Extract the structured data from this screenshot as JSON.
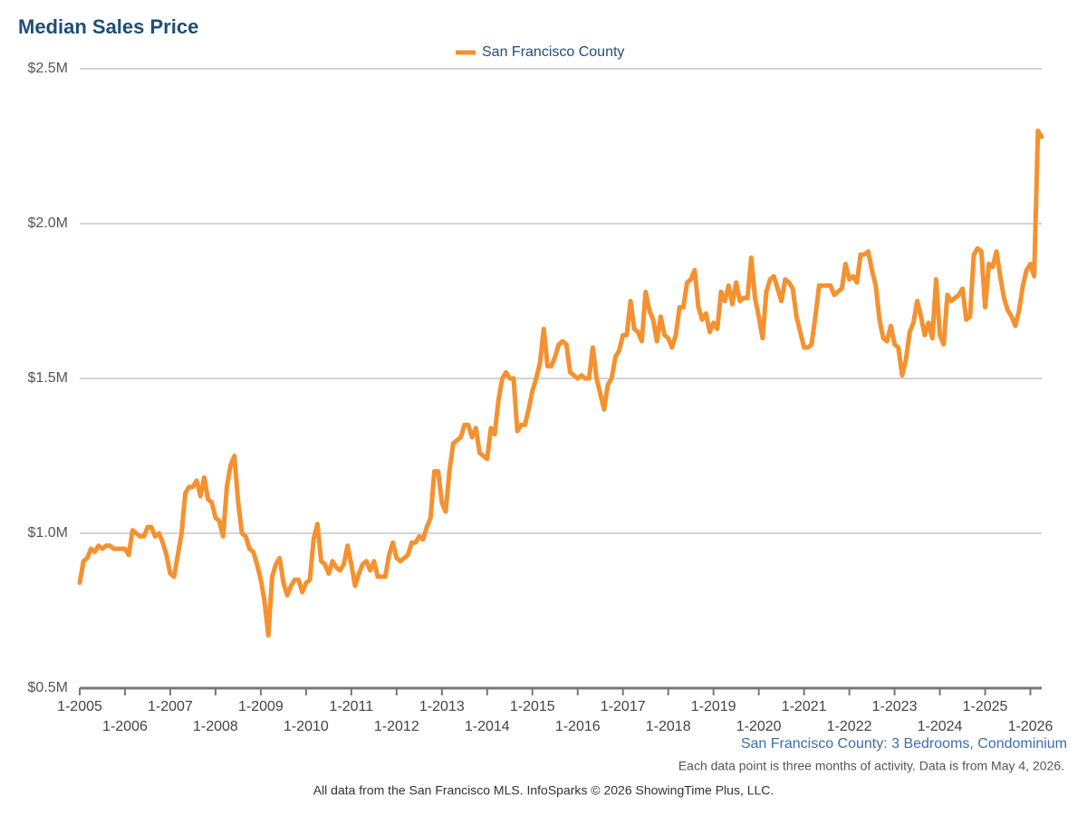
{
  "chart_data": {
    "type": "line",
    "title": "Median Sales Price",
    "subtitle": "San Francisco County: 3 Bedrooms, Condominium",
    "note": "Each data point is three months of activity. Data is from May 4, 2026.",
    "footer": "All data from the San Francisco MLS. InfoSparks © 2026 ShowingTime Plus, LLC.",
    "legend": "top",
    "grid": true,
    "ylim": [
      0.5,
      2.5
    ],
    "yticks": [
      {
        "value": 0.5,
        "label": "$0.5M"
      },
      {
        "value": 1.0,
        "label": "$1.0M"
      },
      {
        "value": 1.5,
        "label": "$1.5M"
      },
      {
        "value": 2.0,
        "label": "$2.0M"
      },
      {
        "value": 2.5,
        "label": "$2.5M"
      }
    ],
    "categories": [
      "1-2005",
      null,
      null,
      null,
      null,
      null,
      null,
      null,
      null,
      null,
      null,
      null,
      "1-2006",
      null,
      null,
      null,
      null,
      null,
      null,
      null,
      null,
      null,
      null,
      null,
      "1-2007",
      null,
      null,
      null,
      null,
      null,
      null,
      null,
      null,
      null,
      null,
      null,
      "1-2008",
      null,
      null,
      null,
      null,
      null,
      null,
      null,
      null,
      null,
      null,
      null,
      "1-2009",
      null,
      null,
      null,
      null,
      null,
      null,
      null,
      null,
      null,
      null,
      null,
      "1-2010",
      null,
      null,
      null,
      null,
      null,
      null,
      null,
      null,
      null,
      null,
      null,
      "1-2011",
      null,
      null,
      null,
      null,
      null,
      null,
      null,
      null,
      null,
      null,
      null,
      "1-2012",
      null,
      null,
      null,
      null,
      null,
      null,
      null,
      null,
      null,
      null,
      null,
      "1-2013",
      null,
      null,
      null,
      null,
      null,
      null,
      null,
      null,
      null,
      null,
      null,
      "1-2014",
      null,
      null,
      null,
      null,
      null,
      null,
      null,
      null,
      null,
      null,
      null,
      "1-2015",
      null,
      null,
      null,
      null,
      null,
      null,
      null,
      null,
      null,
      null,
      null,
      "1-2016",
      null,
      null,
      null,
      null,
      null,
      null,
      null,
      null,
      null,
      null,
      null,
      "1-2017",
      null,
      null,
      null,
      null,
      null,
      null,
      null,
      null,
      null,
      null,
      null,
      "1-2018",
      null,
      null,
      null,
      null,
      null,
      null,
      null,
      null,
      null,
      null,
      null,
      "1-2019",
      null,
      null,
      null,
      null,
      null,
      null,
      null,
      null,
      null,
      null,
      null,
      "1-2020",
      null,
      null,
      null,
      null,
      null,
      null,
      null,
      null,
      null,
      null,
      null,
      "1-2021",
      null,
      null,
      null,
      null,
      null,
      null,
      null,
      null,
      null,
      null,
      null,
      "1-2022",
      null,
      null,
      null,
      null,
      null,
      null,
      null,
      null,
      null,
      null,
      null,
      "1-2023",
      null,
      null,
      null,
      null,
      null,
      null,
      null,
      null,
      null,
      null,
      null,
      "1-2024",
      null,
      null,
      null,
      null,
      null,
      null,
      null,
      null,
      null,
      null,
      null,
      "1-2025",
      null,
      null,
      null,
      null,
      null,
      null,
      null,
      null,
      null,
      null,
      null,
      "1-2026",
      null,
      null,
      null
    ],
    "series": [
      {
        "name": "San Francisco County",
        "color": "#f5912f",
        "values": [
          0.84,
          0.91,
          0.92,
          0.95,
          0.94,
          0.96,
          0.95,
          0.96,
          0.96,
          0.95,
          0.95,
          0.95,
          0.95,
          0.93,
          1.01,
          1.0,
          0.99,
          0.99,
          1.02,
          1.02,
          0.99,
          1.0,
          0.97,
          0.93,
          0.87,
          0.86,
          0.93,
          1.0,
          1.13,
          1.15,
          1.15,
          1.17,
          1.12,
          1.18,
          1.11,
          1.1,
          1.05,
          1.04,
          0.99,
          1.15,
          1.22,
          1.25,
          1.1,
          1.0,
          0.99,
          0.95,
          0.94,
          0.9,
          0.85,
          0.78,
          0.67,
          0.86,
          0.9,
          0.92,
          0.84,
          0.8,
          0.83,
          0.85,
          0.85,
          0.81,
          0.84,
          0.85,
          0.98,
          1.03,
          0.91,
          0.9,
          0.87,
          0.91,
          0.89,
          0.88,
          0.9,
          0.96,
          0.9,
          0.83,
          0.87,
          0.9,
          0.91,
          0.88,
          0.91,
          0.86,
          0.86,
          0.86,
          0.93,
          0.97,
          0.92,
          0.91,
          0.92,
          0.93,
          0.97,
          0.97,
          0.99,
          0.98,
          1.02,
          1.05,
          1.2,
          1.2,
          1.1,
          1.07,
          1.2,
          1.29,
          1.3,
          1.31,
          1.35,
          1.35,
          1.31,
          1.34,
          1.26,
          1.25,
          1.24,
          1.34,
          1.32,
          1.43,
          1.5,
          1.52,
          1.5,
          1.5,
          1.33,
          1.35,
          1.35,
          1.4,
          1.46,
          1.5,
          1.55,
          1.66,
          1.54,
          1.54,
          1.57,
          1.61,
          1.62,
          1.61,
          1.52,
          1.51,
          1.5,
          1.51,
          1.5,
          1.5,
          1.6,
          1.5,
          1.45,
          1.4,
          1.48,
          1.5,
          1.57,
          1.59,
          1.64,
          1.64,
          1.75,
          1.66,
          1.65,
          1.62,
          1.78,
          1.72,
          1.69,
          1.62,
          1.7,
          1.64,
          1.63,
          1.6,
          1.64,
          1.73,
          1.73,
          1.81,
          1.82,
          1.85,
          1.73,
          1.69,
          1.71,
          1.65,
          1.68,
          1.66,
          1.78,
          1.75,
          1.8,
          1.74,
          1.81,
          1.75,
          1.76,
          1.76,
          1.89,
          1.76,
          1.7,
          1.63,
          1.78,
          1.82,
          1.83,
          1.79,
          1.75,
          1.82,
          1.81,
          1.79,
          1.7,
          1.65,
          1.6,
          1.6,
          1.61,
          1.7,
          1.8,
          1.8,
          1.8,
          1.8,
          1.77,
          1.78,
          1.79,
          1.87,
          1.82,
          1.83,
          1.81,
          1.9,
          1.9,
          1.91,
          1.85,
          1.8,
          1.69,
          1.63,
          1.62,
          1.67,
          1.61,
          1.6,
          1.51,
          1.56,
          1.65,
          1.68,
          1.75,
          1.7,
          1.64,
          1.68,
          1.63,
          1.82,
          1.64,
          1.61,
          1.77,
          1.75,
          1.76,
          1.77,
          1.79,
          1.69,
          1.7,
          1.9,
          1.92,
          1.91,
          1.73,
          1.87,
          1.86,
          1.91,
          1.83,
          1.76,
          1.72,
          1.7,
          1.67,
          1.72,
          1.8,
          1.85,
          1.87,
          1.83,
          2.3,
          2.28
        ]
      }
    ]
  }
}
